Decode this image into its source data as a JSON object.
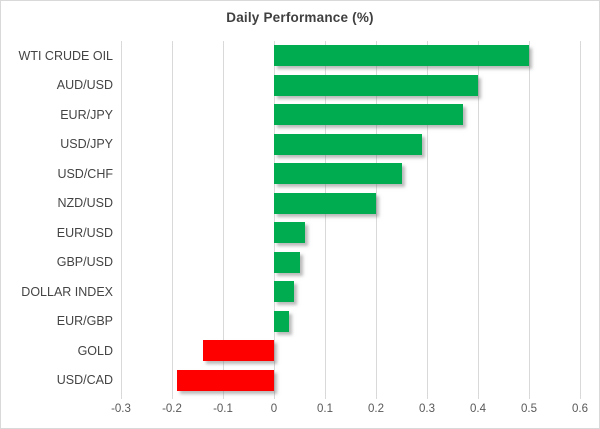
{
  "window": {
    "background": "#FFFFFF",
    "border_color": "#D9D9D9"
  },
  "chart_data": {
    "type": "bar",
    "orientation": "horizontal",
    "title": "Daily Performance (%)",
    "categories": [
      "WTI CRUDE OIL",
      "AUD/USD",
      "EUR/JPY",
      "USD/JPY",
      "USD/CHF",
      "NZD/USD",
      "EUR/USD",
      "GBP/USD",
      "DOLLAR INDEX",
      "EUR/GBP",
      "GOLD",
      "USD/CAD"
    ],
    "values": [
      0.5,
      0.4,
      0.37,
      0.29,
      0.25,
      0.2,
      0.06,
      0.05,
      0.04,
      0.03,
      -0.14,
      -0.19
    ],
    "xlabel": "",
    "ylabel": "",
    "xlim": [
      -0.3,
      0.6
    ],
    "x_tick_labels": [
      "-0.3",
      "-0.2",
      "-0.1",
      "0",
      "0.1",
      "0.2",
      "0.3",
      "0.4",
      "0.5",
      "0.6"
    ],
    "grid": true,
    "legend": "none",
    "positive_color": "#00AC50",
    "negative_color": "#FF0000",
    "gridline_color": "#D9D9D9",
    "title_color": "#404040",
    "category_label_color": "#444444",
    "tick_label_color": "#595959"
  }
}
